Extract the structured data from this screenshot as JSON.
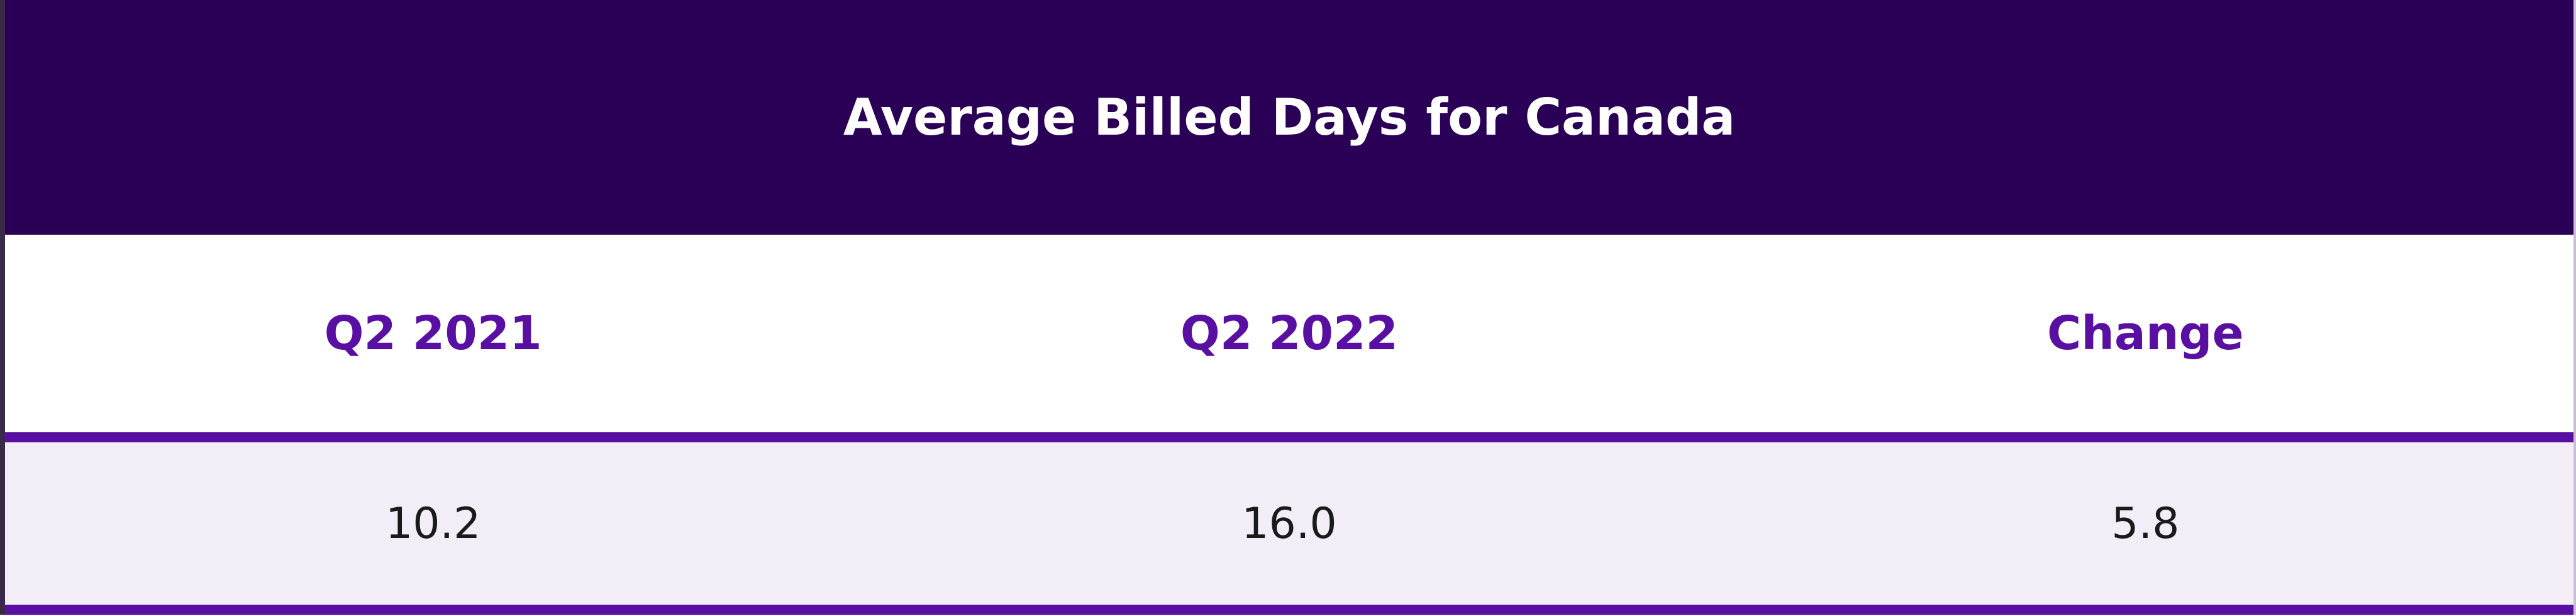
{
  "table": {
    "title": "Average Billed Days for Canada",
    "header": [
      "Q2 2021",
      "Q2 2022",
      "Change"
    ],
    "rows": [
      [
        "10.2",
        "16.0",
        "5.8"
      ]
    ]
  }
}
